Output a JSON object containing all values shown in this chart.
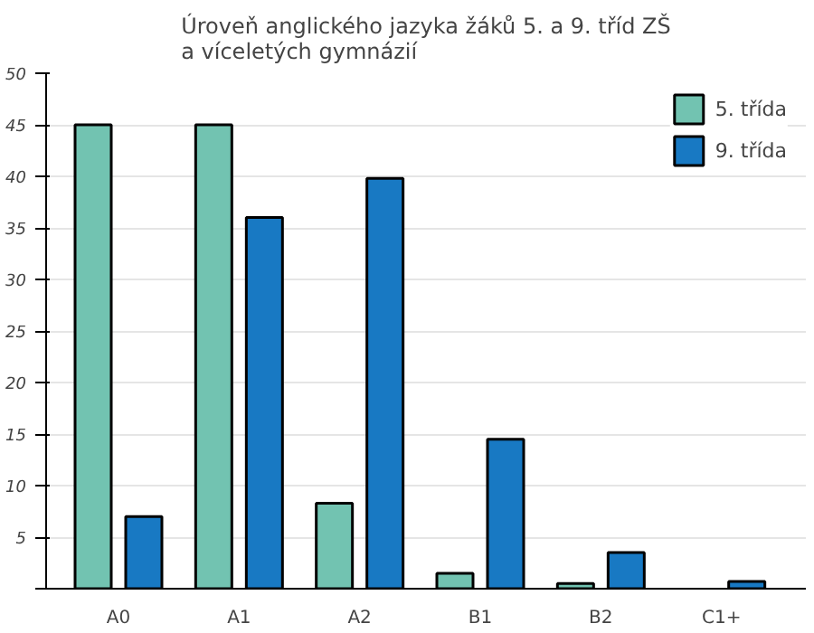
{
  "chart_data": {
    "type": "bar",
    "title": "Úroveň anglického jazyka žáků 5. a 9. tříd ZŠ\na víceletých gymnázií",
    "categories": [
      "A0",
      "A1",
      "A2",
      "B1",
      "B2",
      "C1+"
    ],
    "series": [
      {
        "name": "5. třída",
        "color": "#72c3b1",
        "values": [
          45,
          45,
          8.3,
          1.5,
          0.5,
          null
        ]
      },
      {
        "name": "9. třída",
        "color": "#1879c3",
        "values": [
          7,
          36,
          39.8,
          14.5,
          3.5,
          0.7
        ]
      }
    ],
    "ylim": [
      0,
      50
    ],
    "yticks": [
      {
        "value": 0,
        "label": null
      },
      5,
      10,
      15,
      20,
      25,
      30,
      35,
      40,
      45,
      50
    ],
    "grid": "y",
    "legend": "top right"
  }
}
